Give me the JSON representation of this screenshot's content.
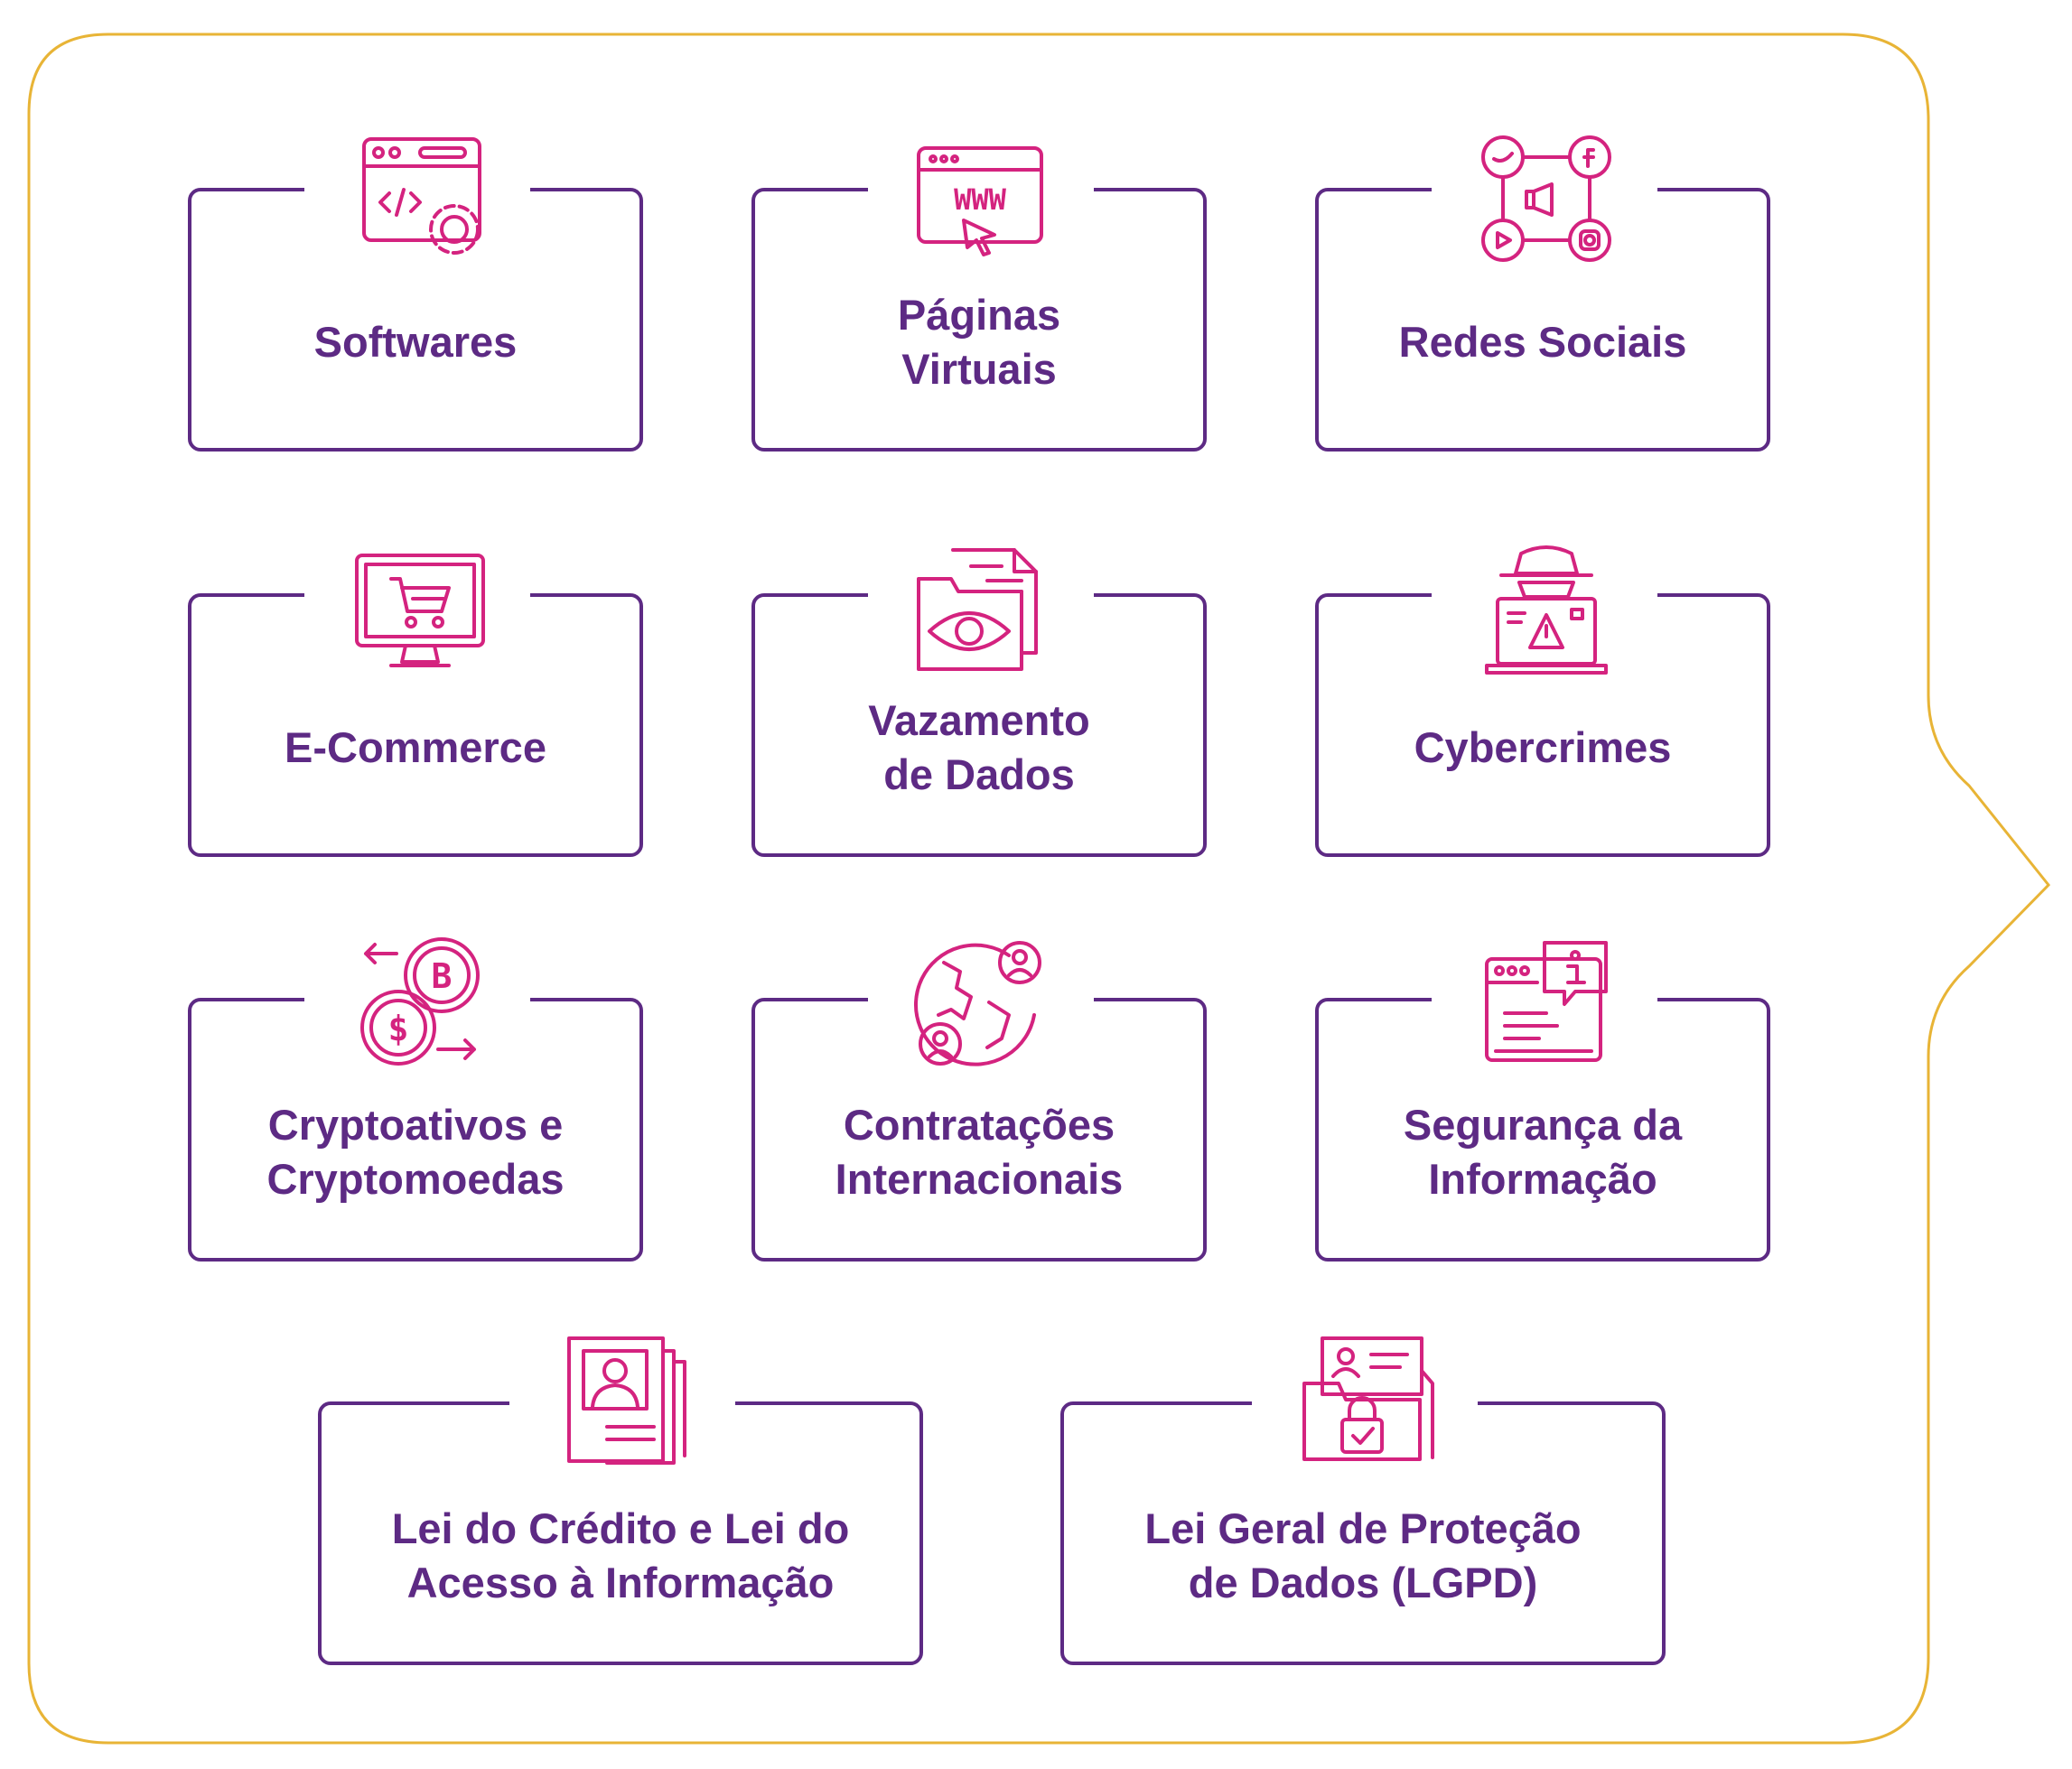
{
  "colors": {
    "frame_border": "#e8b436",
    "card_border": "#5d2a84",
    "label_text": "#5d2a84",
    "icon_stroke": "#d4237f",
    "background": "#ffffff"
  },
  "cards": [
    {
      "label": "Softwares",
      "icon": "code-window-gear-icon"
    },
    {
      "label": "Páginas\nVirtuais",
      "icon": "www-browser-cursor-icon"
    },
    {
      "label": "Redes Sociais",
      "icon": "social-network-icon"
    },
    {
      "label": "E-Commerce",
      "icon": "monitor-shopping-cart-icon"
    },
    {
      "label": "Vazamento\nde Dados",
      "icon": "folder-eye-document-icon"
    },
    {
      "label": "Cybercrimes",
      "icon": "hacker-laptop-warning-icon"
    },
    {
      "label": "Cryptoativos e\nCryptomoedas",
      "icon": "crypto-exchange-icon"
    },
    {
      "label": "Contratações\nInternacionais",
      "icon": "globe-people-icon"
    },
    {
      "label": "Segurança da\nInformação",
      "icon": "browser-info-icon"
    },
    {
      "label": "Lei do Crédito e Lei do\nAcesso à Informação",
      "icon": "profile-documents-icon"
    },
    {
      "label": "Lei Geral de Proteção\nde Dados (LGPD)",
      "icon": "folder-lock-id-icon"
    }
  ]
}
